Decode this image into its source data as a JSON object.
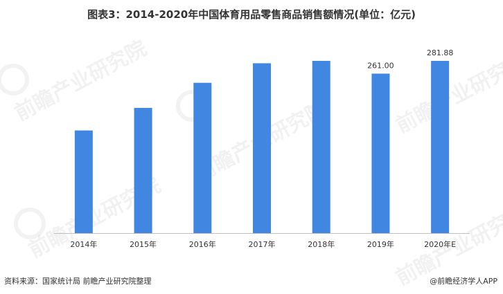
{
  "chart_data": {
    "type": "bar",
    "title": "图表3：2014-2020年中国体育用品零售商品销售额情况(单位：亿元)",
    "categories": [
      "2014年",
      "2015年",
      "2016年",
      "2017年",
      "2018年",
      "2019年",
      "2020年E"
    ],
    "values": [
      168,
      205,
      246,
      278,
      281.88,
      261.0,
      281.88
    ],
    "data_labels": [
      "",
      "",
      "",
      "",
      "",
      "261.00",
      "281.88"
    ],
    "ylim": [
      0,
      300
    ],
    "bar_color": "#4186E0",
    "grid": false,
    "legend": false
  },
  "footer": {
    "source": "资料来源：国家统计局 前瞻产业研究院整理",
    "credit": "@前瞻经济学人APP"
  },
  "watermark": {
    "text": "前瞻产业研究院"
  }
}
